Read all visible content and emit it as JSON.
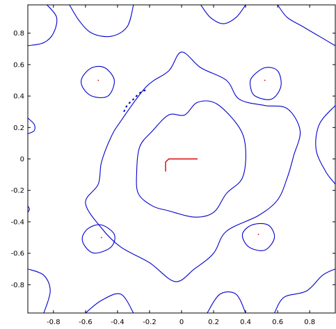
{
  "chart_data": {
    "type": "contour",
    "title": "",
    "xlabel": "",
    "ylabel": "",
    "xlim": [
      -0.96,
      0.96
    ],
    "ylim": [
      -0.98,
      0.98
    ],
    "xticks": [
      -0.8,
      -0.6,
      -0.4,
      -0.2,
      0,
      0.2,
      0.4,
      0.6,
      0.8
    ],
    "yticks": [
      -0.8,
      -0.6,
      -0.4,
      -0.2,
      0,
      0.2,
      0.4,
      0.6,
      0.8
    ],
    "tick_labels_x": [
      "-0.8",
      "-0.6",
      "-0.4",
      "-0.2",
      "0",
      "0.2",
      "0.4",
      "0.6",
      "0.8"
    ],
    "tick_labels_y": [
      "-0.8",
      "-0.6",
      "-0.4",
      "-0.2",
      "0",
      "0.2",
      "0.4",
      "0.6",
      "0.8"
    ],
    "grid": false,
    "colors": {
      "contour": "#0000cc",
      "path": "#dd0000",
      "axes": "#000000"
    },
    "contours": [
      {
        "name": "",
        "level_group": "inner",
        "color": "#0000cc",
        "closed": true,
        "points": [
          [
            -0.28,
            -0.08
          ],
          [
            -0.26,
            0.08
          ],
          [
            -0.18,
            0.18
          ],
          [
            -0.08,
            0.28
          ],
          [
            0.02,
            0.28
          ],
          [
            0.1,
            0.36
          ],
          [
            0.22,
            0.35
          ],
          [
            0.36,
            0.2
          ],
          [
            0.4,
            0.06
          ],
          [
            0.38,
            -0.12
          ],
          [
            0.28,
            -0.22
          ],
          [
            0.2,
            -0.34
          ],
          [
            0.08,
            -0.37
          ],
          [
            -0.08,
            -0.33
          ],
          [
            -0.18,
            -0.3
          ],
          [
            -0.27,
            -0.22
          ]
        ]
      },
      {
        "name": "",
        "level_group": "outer",
        "color": "#0000cc",
        "closed": true,
        "points": [
          [
            -0.5,
            -0.02
          ],
          [
            -0.44,
            0.14
          ],
          [
            -0.38,
            0.24
          ],
          [
            -0.22,
            0.46
          ],
          [
            -0.08,
            0.56
          ],
          [
            0.0,
            0.68
          ],
          [
            0.12,
            0.58
          ],
          [
            0.28,
            0.5
          ],
          [
            0.36,
            0.38
          ],
          [
            0.52,
            0.34
          ],
          [
            0.66,
            0.32
          ],
          [
            0.74,
            0.18
          ],
          [
            0.7,
            0.02
          ],
          [
            0.66,
            -0.12
          ],
          [
            0.6,
            -0.26
          ],
          [
            0.48,
            -0.36
          ],
          [
            0.28,
            -0.46
          ],
          [
            0.2,
            -0.6
          ],
          [
            0.08,
            -0.7
          ],
          [
            -0.04,
            -0.78
          ],
          [
            -0.2,
            -0.66
          ],
          [
            -0.38,
            -0.56
          ],
          [
            -0.5,
            -0.44
          ],
          [
            -0.6,
            -0.28
          ],
          [
            -0.52,
            -0.16
          ]
        ]
      },
      {
        "name": "",
        "level_group": "bowl",
        "color": "#0000cc",
        "closed": true,
        "points": [
          [
            -0.62,
            0.52
          ],
          [
            -0.56,
            0.58
          ],
          [
            -0.48,
            0.58
          ],
          [
            -0.42,
            0.5
          ],
          [
            -0.46,
            0.4
          ],
          [
            -0.56,
            0.4
          ],
          [
            -0.62,
            0.46
          ]
        ]
      },
      {
        "name": "",
        "level_group": "bowl",
        "color": "#0000cc",
        "closed": true,
        "points": [
          [
            0.44,
            0.52
          ],
          [
            0.52,
            0.58
          ],
          [
            0.6,
            0.56
          ],
          [
            0.62,
            0.46
          ],
          [
            0.56,
            0.38
          ],
          [
            0.46,
            0.4
          ],
          [
            0.43,
            0.46
          ]
        ]
      },
      {
        "name": "",
        "level_group": "bowl",
        "color": "#0000cc",
        "closed": true,
        "points": [
          [
            -0.62,
            -0.5
          ],
          [
            -0.58,
            -0.44
          ],
          [
            -0.5,
            -0.42
          ],
          [
            -0.42,
            -0.48
          ],
          [
            -0.44,
            -0.56
          ],
          [
            -0.54,
            -0.6
          ],
          [
            -0.6,
            -0.56
          ]
        ]
      },
      {
        "name": "",
        "level_group": "bowl",
        "color": "#0000cc",
        "closed": true,
        "points": [
          [
            0.38,
            -0.48
          ],
          [
            0.44,
            -0.42
          ],
          [
            0.54,
            -0.42
          ],
          [
            0.58,
            -0.5
          ],
          [
            0.52,
            -0.58
          ],
          [
            0.42,
            -0.56
          ]
        ]
      },
      {
        "name": "",
        "level_group": "edge",
        "color": "#0000cc",
        "closed": false,
        "points": [
          [
            -0.96,
            0.72
          ],
          [
            -0.86,
            0.74
          ],
          [
            -0.8,
            0.8
          ],
          [
            -0.78,
            0.9
          ],
          [
            -0.84,
            0.98
          ]
        ]
      },
      {
        "name": "",
        "level_group": "edge",
        "color": "#0000cc",
        "closed": false,
        "points": [
          [
            -0.7,
            0.98
          ],
          [
            -0.64,
            0.88
          ],
          [
            -0.56,
            0.8
          ],
          [
            -0.44,
            0.78
          ],
          [
            -0.34,
            0.84
          ],
          [
            -0.3,
            0.98
          ]
        ]
      },
      {
        "name": "",
        "level_group": "edge",
        "color": "#0000cc",
        "closed": false,
        "points": [
          [
            0.12,
            0.98
          ],
          [
            0.18,
            0.9
          ],
          [
            0.26,
            0.86
          ],
          [
            0.34,
            0.9
          ],
          [
            0.4,
            0.98
          ]
        ]
      },
      {
        "name": "",
        "level_group": "edge",
        "color": "#0000cc",
        "closed": false,
        "points": [
          [
            0.6,
            0.98
          ],
          [
            0.66,
            0.9
          ],
          [
            0.76,
            0.84
          ],
          [
            0.86,
            0.78
          ],
          [
            0.96,
            0.72
          ]
        ]
      },
      {
        "name": "",
        "level_group": "edge",
        "color": "#0000cc",
        "closed": false,
        "points": [
          [
            -0.96,
            -0.7
          ],
          [
            -0.86,
            -0.74
          ],
          [
            -0.82,
            -0.84
          ],
          [
            -0.86,
            -0.98
          ]
        ]
      },
      {
        "name": "",
        "level_group": "edge",
        "color": "#0000cc",
        "closed": false,
        "points": [
          [
            -0.6,
            -0.98
          ],
          [
            -0.5,
            -0.9
          ],
          [
            -0.38,
            -0.86
          ],
          [
            -0.3,
            -0.98
          ]
        ]
      },
      {
        "name": "",
        "level_group": "edge",
        "color": "#0000cc",
        "closed": false,
        "points": [
          [
            0.16,
            -0.98
          ],
          [
            0.24,
            -0.86
          ],
          [
            0.34,
            -0.86
          ],
          [
            0.4,
            -0.98
          ]
        ]
      },
      {
        "name": "",
        "level_group": "edge",
        "color": "#0000cc",
        "closed": false,
        "points": [
          [
            0.58,
            -0.98
          ],
          [
            0.64,
            -0.88
          ],
          [
            0.78,
            -0.84
          ],
          [
            0.88,
            -0.74
          ],
          [
            0.96,
            -0.7
          ]
        ]
      },
      {
        "name": "",
        "level_group": "edge",
        "color": "#0000cc",
        "closed": false,
        "points": [
          [
            0.96,
            0.34
          ],
          [
            0.86,
            0.22
          ],
          [
            0.84,
            0.06
          ],
          [
            0.9,
            -0.08
          ],
          [
            0.96,
            -0.16
          ]
        ]
      },
      {
        "name": "",
        "level_group": "edge",
        "color": "#0000cc",
        "closed": false,
        "points": [
          [
            -0.96,
            0.26
          ],
          [
            -0.92,
            0.22
          ],
          [
            -0.92,
            0.18
          ],
          [
            -0.96,
            0.16
          ]
        ]
      },
      {
        "name": "",
        "level_group": "edge",
        "color": "#0000cc",
        "closed": false,
        "points": [
          [
            -0.96,
            -0.3
          ],
          [
            -0.95,
            -0.32
          ],
          [
            -0.96,
            -0.34
          ]
        ]
      }
    ],
    "dotted_segments": [
      {
        "color": "#0000cc",
        "points": [
          [
            -0.36,
            0.3
          ],
          [
            -0.34,
            0.34
          ],
          [
            -0.3,
            0.38
          ],
          [
            -0.26,
            0.42
          ],
          [
            -0.22,
            0.44
          ]
        ]
      }
    ],
    "path": {
      "color": "#dd0000",
      "points": [
        [
          0.1,
          0.0
        ],
        [
          -0.08,
          0.0
        ],
        [
          -0.1,
          -0.02
        ],
        [
          -0.1,
          -0.08
        ]
      ]
    },
    "markers": [
      {
        "color": "#dd0000",
        "x": -0.52,
        "y": 0.5
      },
      {
        "color": "#dd0000",
        "x": 0.52,
        "y": 0.5
      },
      {
        "color": "#dd0000",
        "x": -0.5,
        "y": -0.5
      },
      {
        "color": "#dd0000",
        "x": 0.48,
        "y": -0.48
      }
    ]
  }
}
